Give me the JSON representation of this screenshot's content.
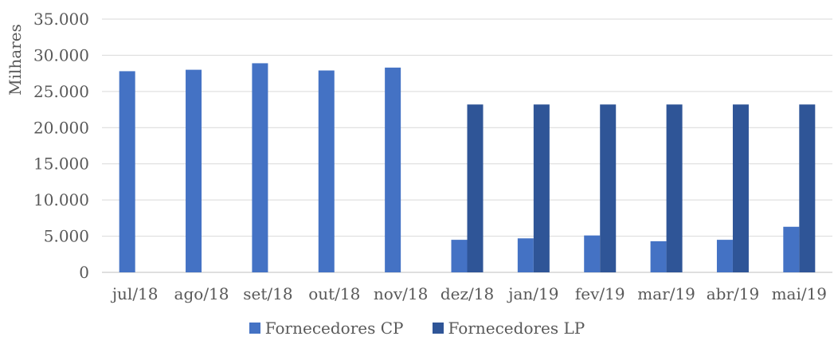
{
  "chart_data": {
    "type": "bar",
    "ylabel": "Milhares",
    "xlabel": "",
    "title": "",
    "ylim": [
      0,
      35000
    ],
    "yticks": [
      0,
      5000,
      10000,
      15000,
      20000,
      25000,
      30000,
      35000
    ],
    "ytick_labels": [
      "0",
      "5.000",
      "10.000",
      "15.000",
      "20.000",
      "25.000",
      "30.000",
      "35.000"
    ],
    "grid": true,
    "legend_position": "bottom",
    "categories": [
      "jul/18",
      "ago/18",
      "set/18",
      "out/18",
      "nov/18",
      "dez/18",
      "jan/19",
      "fev/19",
      "mar/19",
      "abr/19",
      "mai/19"
    ],
    "series": [
      {
        "name": "Fornecedores CP",
        "color": "#4472c4",
        "values": [
          27800,
          28000,
          28900,
          27900,
          28300,
          4500,
          4700,
          5100,
          4300,
          4500,
          6300
        ]
      },
      {
        "name": "Fornecedores LP",
        "color": "#2f5597",
        "values": [
          0,
          0,
          0,
          0,
          0,
          23200,
          23200,
          23200,
          23200,
          23200,
          23200
        ]
      }
    ]
  }
}
